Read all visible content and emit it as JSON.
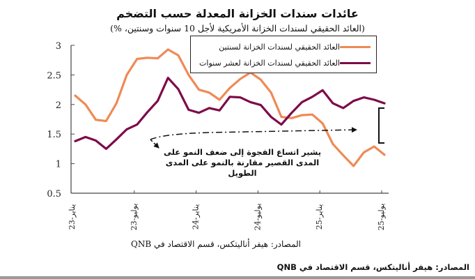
{
  "chart_data": {
    "type": "line",
    "title": "عائدات سندات الخزانة المعدلة حسب التضخم",
    "subtitle": "(العائد الحقيقي لسندات الخزانة الأمريكية لأجل 10 سنوات وسنتين، %)",
    "xlabel": "",
    "ylabel": "",
    "ylim": [
      0.5,
      3
    ],
    "yticks": [
      "0.5",
      "1",
      "1.5",
      "2",
      "2.5",
      "3"
    ],
    "ytick_values": [
      0.5,
      1,
      1.5,
      2,
      2.5,
      3
    ],
    "xtick_labels": [
      "يناير-23",
      "يوليو-23",
      "يناير-24",
      "يوليو-24",
      "يناير-25",
      "يوليو-25"
    ],
    "xtick_indices": [
      0,
      6,
      12,
      18,
      24,
      30
    ],
    "grid": false,
    "legend_position": "top-right",
    "x": [
      "Jan-23",
      "Feb-23",
      "Mar-23",
      "Apr-23",
      "May-23",
      "Jun-23",
      "Jul-23",
      "Aug-23",
      "Sep-23",
      "Oct-23",
      "Nov-23",
      "Dec-23",
      "Jan-24",
      "Feb-24",
      "Mar-24",
      "Apr-24",
      "May-24",
      "Jun-24",
      "Jul-24",
      "Aug-24",
      "Sep-24",
      "Oct-24",
      "Nov-24",
      "Dec-24",
      "Jan-25",
      "Feb-25",
      "Mar-25",
      "Apr-25",
      "May-25",
      "Jun-25",
      "Jul-25"
    ],
    "series": [
      {
        "name": "العائد الحقيقي لسندات الخزانة لسنتين",
        "color": "#ef8a55",
        "values": [
          2.15,
          2.0,
          1.74,
          1.72,
          2.02,
          2.5,
          2.77,
          2.79,
          2.78,
          2.93,
          2.83,
          2.5,
          2.25,
          2.2,
          2.08,
          2.28,
          2.43,
          2.54,
          2.42,
          2.2,
          1.79,
          1.77,
          1.82,
          1.83,
          1.68,
          1.33,
          1.14,
          0.96,
          1.19,
          1.29,
          1.15
        ]
      },
      {
        "name": "العائد الحقيقي لسندات الخزانة لعشر سنوات",
        "color": "#7d0a4a",
        "values": [
          1.38,
          1.45,
          1.39,
          1.25,
          1.41,
          1.58,
          1.66,
          1.87,
          2.06,
          2.45,
          2.26,
          1.91,
          1.86,
          1.94,
          1.9,
          2.13,
          2.12,
          2.04,
          1.99,
          1.79,
          1.66,
          1.86,
          2.04,
          2.13,
          2.24,
          2.02,
          1.94,
          2.06,
          2.12,
          2.08,
          2.02
        ]
      }
    ],
    "annotation": "يشير اتساع الفجوة إلى ضعف النمو على المدى القصير مقارنة بالنمو على المدى الطويل"
  },
  "source_primary": "المصادر: هيفر أناليتكس، قسم الاقتصاد في QNB",
  "source_secondary": "المصادر: هيفر أناليتكس، قسم الاقتصاد في QNB"
}
